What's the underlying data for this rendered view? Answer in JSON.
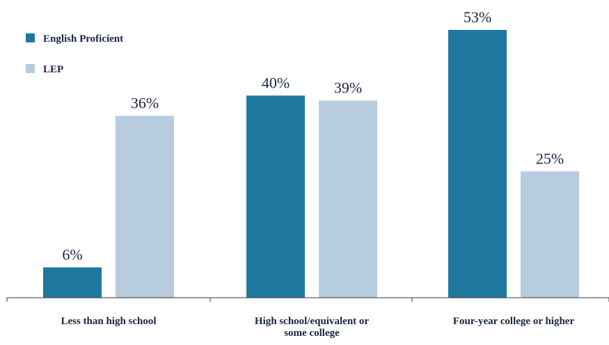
{
  "colors": {
    "english_proficient": "#1f78a0",
    "lep": "#b7ccdf",
    "axis": "#333333",
    "text": "#1a2540"
  },
  "chart_data": {
    "type": "bar",
    "title": "",
    "xlabel": "",
    "ylabel": "",
    "ylim": [
      0,
      53
    ],
    "grid": false,
    "legend_position": "top-left",
    "categories": [
      [
        "Less than high school"
      ],
      [
        "High school/equivalent or",
        "some college"
      ],
      [
        "Four-year college or higher"
      ]
    ],
    "series": [
      {
        "name": "English Proficient",
        "color": "#1f78a0",
        "values": [
          6,
          40,
          53
        ],
        "labels": [
          "6%",
          "40%",
          "53%"
        ]
      },
      {
        "name": "LEP",
        "color": "#b7ccdf",
        "values": [
          36,
          39,
          25
        ],
        "labels": [
          "36%",
          "39%",
          "25%"
        ]
      }
    ]
  }
}
